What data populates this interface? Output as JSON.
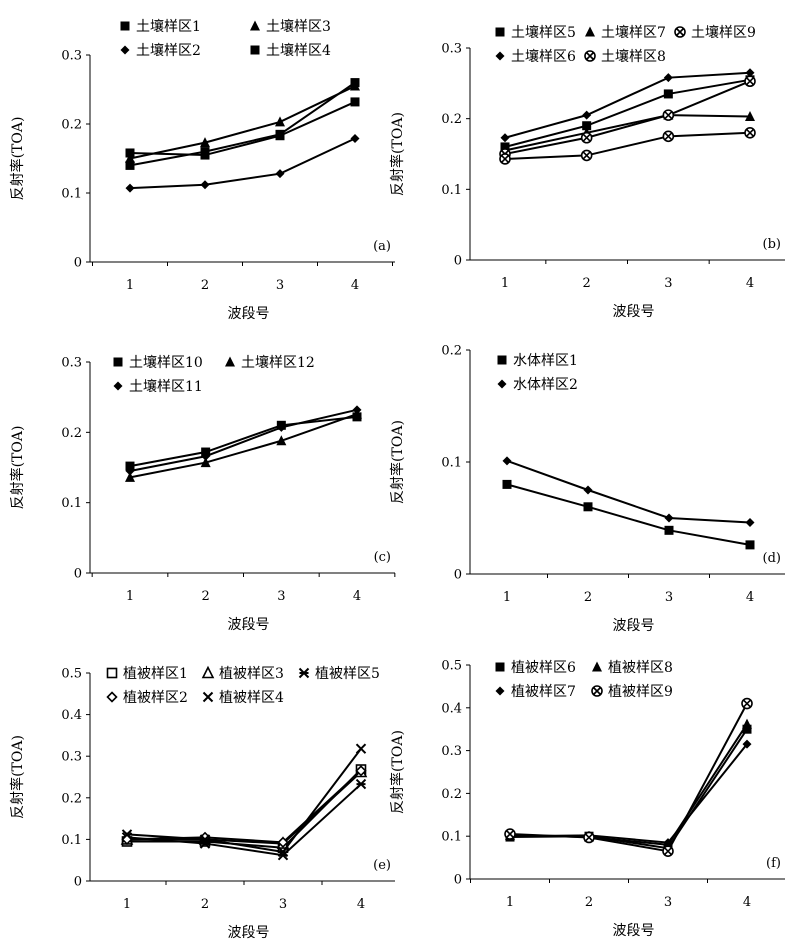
{
  "chart_data": [
    {
      "id": "a",
      "type": "line",
      "panel_label": "(a)",
      "xlabel": "波段号",
      "ylabel": "反射率(TOA)",
      "categories": [
        1,
        2,
        3,
        4
      ],
      "x_ticks": [
        "1",
        "2",
        "3",
        "4"
      ],
      "ylim": [
        0,
        0.3
      ],
      "yticks": [
        "0",
        "0.1",
        "0.2",
        "0.3"
      ],
      "ytick_values": [
        0,
        0.1,
        0.2,
        0.3
      ],
      "legend_columns": 2,
      "series": [
        {
          "name": "土壤样区1",
          "marker": "square",
          "values": [
            0.14,
            0.16,
            0.185,
            0.26
          ]
        },
        {
          "name": "土壤样区3",
          "marker": "triangle",
          "values": [
            0.15,
            0.173,
            0.203,
            0.255
          ]
        },
        {
          "name": "土壤样区2",
          "marker": "diamond",
          "values": [
            0.107,
            0.112,
            0.128,
            0.179
          ]
        },
        {
          "name": "土壤样区4",
          "marker": "square",
          "values": [
            0.158,
            0.155,
            0.183,
            0.232
          ]
        }
      ]
    },
    {
      "id": "b",
      "type": "line",
      "panel_label": "(b)",
      "xlabel": "波段号",
      "ylabel": "反射率(TOA)",
      "categories": [
        1,
        2,
        3,
        4
      ],
      "x_ticks": [
        "1",
        "2",
        "3",
        "4"
      ],
      "ylim": [
        0,
        0.3
      ],
      "yticks": [
        "0",
        "0.1",
        "0.2",
        "0.3"
      ],
      "ytick_values": [
        0,
        0.1,
        0.2,
        0.3
      ],
      "legend_columns": 3,
      "series": [
        {
          "name": "土壤样区5",
          "marker": "square",
          "values": [
            0.16,
            0.19,
            0.235,
            0.255
          ]
        },
        {
          "name": "土壤样区7",
          "marker": "triangle",
          "values": [
            0.155,
            0.18,
            0.205,
            0.203
          ]
        },
        {
          "name": "土壤样区9",
          "marker": "circle-x",
          "values": [
            0.15,
            0.173,
            0.205,
            0.253
          ]
        },
        {
          "name": "土壤样区6",
          "marker": "diamond",
          "values": [
            0.173,
            0.205,
            0.258,
            0.265
          ]
        },
        {
          "name": "土壤样区8",
          "marker": "circle-x",
          "values": [
            0.143,
            0.148,
            0.175,
            0.18
          ]
        }
      ]
    },
    {
      "id": "c",
      "type": "line",
      "panel_label": "(c)",
      "xlabel": "波段号",
      "ylabel": "反射率(TOA)",
      "categories": [
        1,
        2,
        3,
        4
      ],
      "x_ticks": [
        "1",
        "2",
        "3",
        "4"
      ],
      "ylim": [
        0,
        0.3
      ],
      "yticks": [
        "0",
        "0.1",
        "0.2",
        "0.3"
      ],
      "ytick_values": [
        0,
        0.1,
        0.2,
        0.3
      ],
      "legend_columns": 2,
      "series": [
        {
          "name": "土壤样区10",
          "marker": "square",
          "values": [
            0.152,
            0.172,
            0.21,
            0.222
          ]
        },
        {
          "name": "土壤样区12",
          "marker": "triangle",
          "values": [
            0.136,
            0.157,
            0.188,
            0.226
          ]
        },
        {
          "name": "土壤样区11",
          "marker": "diamond",
          "values": [
            0.145,
            0.166,
            0.207,
            0.232
          ]
        }
      ]
    },
    {
      "id": "d",
      "type": "line",
      "panel_label": "(d)",
      "xlabel": "波段号",
      "ylabel": "反射率(TOA)",
      "categories": [
        1,
        2,
        3,
        4
      ],
      "x_ticks": [
        "1",
        "2",
        "3",
        "4"
      ],
      "ylim": [
        0,
        0.2
      ],
      "yticks": [
        "0",
        "0.1",
        "0.2"
      ],
      "ytick_values": [
        0,
        0.1,
        0.2
      ],
      "legend_columns": 1,
      "series": [
        {
          "name": "水体样区1",
          "marker": "square",
          "values": [
            0.08,
            0.06,
            0.039,
            0.026
          ]
        },
        {
          "name": "水体样区2",
          "marker": "diamond",
          "values": [
            0.101,
            0.075,
            0.05,
            0.046
          ]
        }
      ]
    },
    {
      "id": "e",
      "type": "line",
      "panel_label": "(e)",
      "xlabel": "波段号",
      "ylabel": "反射率(TOA)",
      "categories": [
        1,
        2,
        3,
        4
      ],
      "x_ticks": [
        "1",
        "2",
        "3",
        "4"
      ],
      "ylim": [
        0,
        0.5
      ],
      "yticks": [
        "0",
        "0.1",
        "0.2",
        "0.3",
        "0.4",
        "0.5"
      ],
      "ytick_values": [
        0,
        0.1,
        0.2,
        0.3,
        0.4,
        0.5
      ],
      "legend_columns": 3,
      "series": [
        {
          "name": "植被样区1",
          "marker": "open-square",
          "values": [
            0.095,
            0.095,
            0.08,
            0.268
          ]
        },
        {
          "name": "植被样区3",
          "marker": "open-triangle",
          "values": [
            0.1,
            0.1,
            0.09,
            0.262
          ]
        },
        {
          "name": "植被样区5",
          "marker": "asterisk",
          "values": [
            0.105,
            0.09,
            0.062,
            0.233
          ]
        },
        {
          "name": "植被样区2",
          "marker": "open-diamond",
          "values": [
            0.1,
            0.105,
            0.093,
            0.265
          ]
        },
        {
          "name": "植被样区4",
          "marker": "x",
          "values": [
            0.112,
            0.1,
            0.07,
            0.318
          ]
        }
      ]
    },
    {
      "id": "f",
      "type": "line",
      "panel_label": "(f)",
      "xlabel": "波段号",
      "ylabel": "反射率(TOA)",
      "categories": [
        1,
        2,
        3,
        4
      ],
      "x_ticks": [
        "1",
        "2",
        "3",
        "4"
      ],
      "ylim": [
        0,
        0.5
      ],
      "yticks": [
        "0",
        "0.1",
        "0.2",
        "0.3",
        "0.4",
        "0.5"
      ],
      "ytick_values": [
        0,
        0.1,
        0.2,
        0.3,
        0.4,
        0.5
      ],
      "legend_columns": 2,
      "series": [
        {
          "name": "植被样区6",
          "marker": "square",
          "values": [
            0.098,
            0.1,
            0.072,
            0.35
          ]
        },
        {
          "name": "植被样区8",
          "marker": "triangle",
          "values": [
            0.102,
            0.098,
            0.08,
            0.362
          ]
        },
        {
          "name": "植被样区7",
          "marker": "diamond",
          "values": [
            0.1,
            0.102,
            0.085,
            0.315
          ]
        },
        {
          "name": "植被样区9",
          "marker": "circle-x",
          "values": [
            0.105,
            0.097,
            0.065,
            0.41
          ]
        }
      ]
    }
  ]
}
